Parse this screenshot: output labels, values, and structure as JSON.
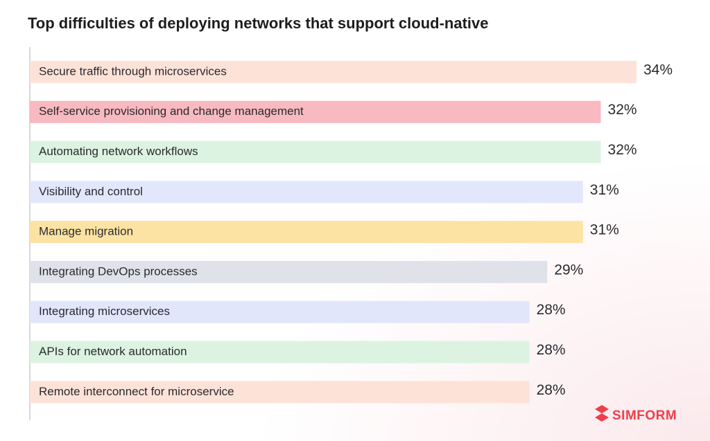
{
  "chart_data": {
    "type": "hbar",
    "title": "Top difficulties of deploying networks that support cloud-native",
    "categories": [
      "Secure traffic through microservices",
      "Self-service provisioning and change management",
      "Automating network workflows",
      "Visibility and control",
      "Manage migration",
      "Integrating DevOps processes",
      "Integrating microservices",
      "APIs for network automation",
      "Remote interconnect for microservice"
    ],
    "values": [
      34,
      32,
      32,
      31,
      31,
      29,
      28,
      28,
      28
    ],
    "value_labels": [
      "34%",
      "32%",
      "32%",
      "31%",
      "31%",
      "29%",
      "28%",
      "28%",
      "28%"
    ],
    "colors": [
      "#fde2d8",
      "#f8b9c0",
      "#dcf3e1",
      "#e2e7fb",
      "#fde3a3",
      "#dfe2e9",
      "#e2e6fb",
      "#dcf3e1",
      "#fde2d8"
    ],
    "watermark": "SIMFORM"
  }
}
